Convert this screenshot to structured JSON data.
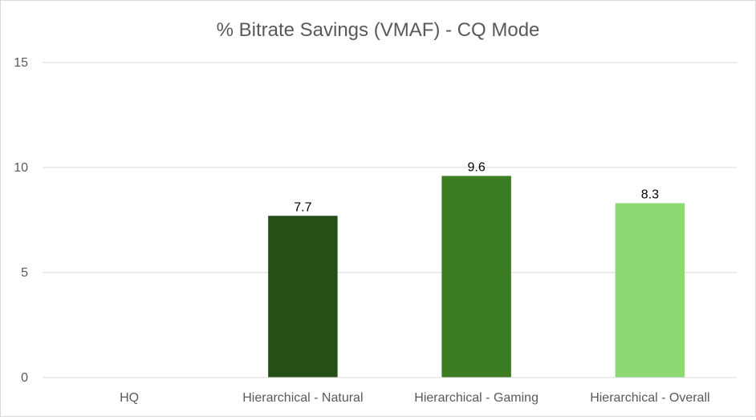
{
  "chart_data": {
    "type": "bar",
    "title": "% Bitrate Savings (VMAF) - CQ Mode",
    "categories": [
      "HQ",
      "Hierarchical - Natural",
      "Hierarchical - Gaming",
      "Hierarchical - Overall"
    ],
    "values": [
      0,
      7.7,
      9.6,
      8.3
    ],
    "data_labels": [
      "",
      "7.7",
      "9.6",
      "8.3"
    ],
    "bar_colors": [
      "#264f17",
      "#264f17",
      "#3c7d23",
      "#8ed873"
    ],
    "ylim": [
      0,
      15
    ],
    "yticks": [
      0,
      5,
      10,
      15
    ],
    "xlabel": "",
    "ylabel": "",
    "grid": true,
    "legend": "none"
  }
}
